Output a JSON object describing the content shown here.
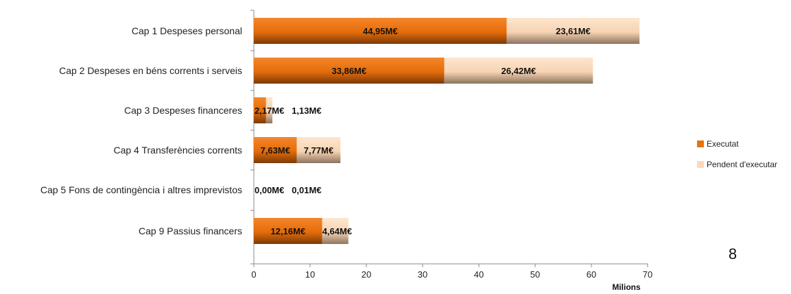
{
  "chart_data": {
    "type": "bar",
    "orientation": "horizontal",
    "stacked": true,
    "categories": [
      "Cap 1 Despeses personal",
      "Cap 2 Despeses en béns corrents i serveis",
      "Cap 3 Despeses financeres",
      "Cap 4 Transferències corrents",
      "Cap 5 Fons de contingència i altres imprevistos",
      "Cap 9 Passius financers"
    ],
    "series": [
      {
        "name": "Executat",
        "color": "#E8730C",
        "values": [
          44.95,
          33.86,
          2.17,
          7.63,
          0.0,
          12.16
        ],
        "labels": [
          "44,95M€",
          "33,86M€",
          "2,17M€",
          "7,63M€",
          "0,00M€",
          "12,16M€"
        ]
      },
      {
        "name": "Pendent d'executar",
        "color": "#FBD9B8",
        "values": [
          23.61,
          26.42,
          1.13,
          7.77,
          0.01,
          4.64
        ],
        "labels": [
          "23,61M€",
          "26,42M€",
          "1,13M€",
          "7,77M€",
          "0,01M€",
          "4,64M€"
        ]
      }
    ],
    "xlim": [
      0,
      70
    ],
    "xticks": [
      "0",
      "10",
      "20",
      "30",
      "40",
      "50",
      "60",
      "70"
    ],
    "xlabel": "Milions",
    "ylabel": "",
    "title": "",
    "grid": false,
    "legend_position": "right"
  },
  "page_number": "8"
}
